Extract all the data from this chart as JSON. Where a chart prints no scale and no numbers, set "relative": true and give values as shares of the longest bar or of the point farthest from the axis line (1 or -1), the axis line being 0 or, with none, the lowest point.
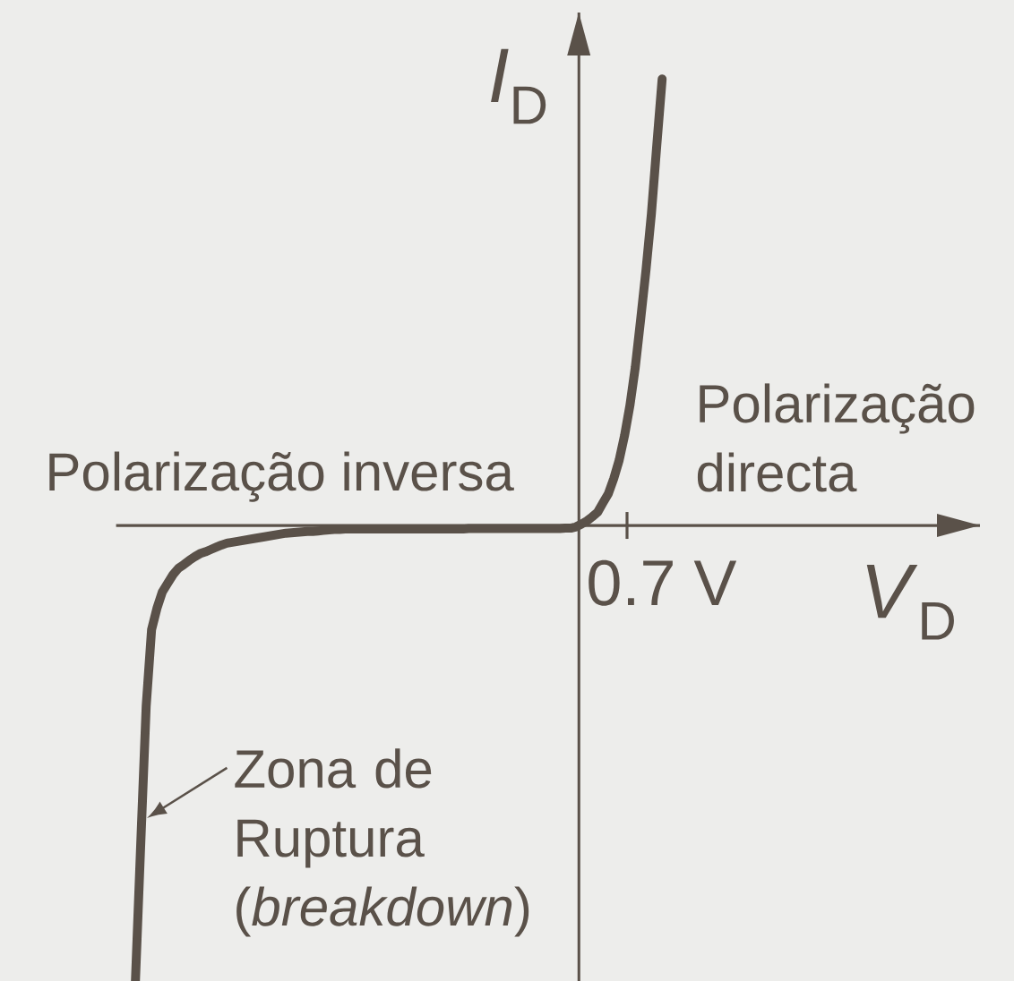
{
  "chart_data": {
    "type": "line",
    "relative": true,
    "xlabel": "*V*$_{D}$",
    "ylabel": "*I*$_{D}$",
    "categories": [
      null,
      null,
      null,
      null,
      null,
      null,
      null,
      null,
      null,
      null,
      null,
      null,
      null,
      null,
      null,
      null,
      null,
      null,
      null,
      null,
      null,
      null,
      null,
      null,
      null,
      null,
      null,
      null,
      null,
      null,
      null,
      null,
      null,
      null,
      null,
      null,
      null,
      null,
      null,
      null,
      null,
      null,
      null,
      null,
      null,
      null,
      null,
      null,
      null,
      null,
      null,
      null,
      null,
      null,
      null,
      null,
      null,
      null,
      null,
      null,
      null,
      null,
      null,
      null,
      null,
      null,
      null,
      null,
      null,
      null,
      null,
      null,
      null,
      null,
      null,
      null,
      null,
      null,
      null,
      null,
      null,
      null,
      null,
      null,
      null,
      null,
      null,
      null,
      null,
      null,
      null,
      null,
      null,
      null,
      null,
      null,
      null,
      null,
      null
    ],
    "series": [
      {
        "color": "#5a5149",
        "values": [
          -1.0,
          -0.695,
          -0.397,
          -0.229,
          -0.182,
          -0.146,
          -0.127,
          -0.108,
          -0.094,
          -0.086,
          -0.077,
          -0.069,
          -0.062,
          -0.058,
          -0.053,
          -0.048,
          -0.043,
          -0.039,
          -0.037,
          -0.035,
          -0.033,
          -0.031,
          -0.029,
          -0.027,
          -0.025,
          -0.023,
          -0.021,
          -0.019,
          -0.017,
          -0.016,
          -0.015,
          -0.014,
          -0.013,
          -0.013,
          -0.012,
          -0.011,
          -0.01,
          -0.009,
          -0.009,
          -0.008,
          -0.008,
          -0.008,
          -0.008,
          -0.008,
          -0.008,
          -0.008,
          -0.008,
          -0.008,
          -0.008,
          -0.008,
          -0.008,
          -0.008,
          -0.008,
          -0.008,
          -0.008,
          -0.008,
          -0.008,
          -0.008,
          -0.008,
          -0.008,
          -0.008,
          -0.008,
          -0.007,
          -0.007,
          -0.007,
          -0.007,
          -0.007,
          -0.007,
          -0.007,
          -0.007,
          -0.007,
          -0.007,
          -0.007,
          -0.007,
          -0.007,
          -0.007,
          -0.007,
          -0.007,
          -0.007,
          -0.007,
          -0.006,
          -0.006,
          -0.003,
          0.003,
          0.01,
          0.019,
          0.029,
          0.05,
          0.07,
          0.103,
          0.143,
          0.197,
          0.263,
          0.347,
          0.452,
          0.561,
          0.684,
          0.834,
          0.98
        ]
      }
    ],
    "line_style": "solid",
    "annotations": [
      "Polarização inversa",
      "Polarização directa",
      "0.7 V",
      "Zona de Ruptura (*breakdown*)"
    ]
  }
}
